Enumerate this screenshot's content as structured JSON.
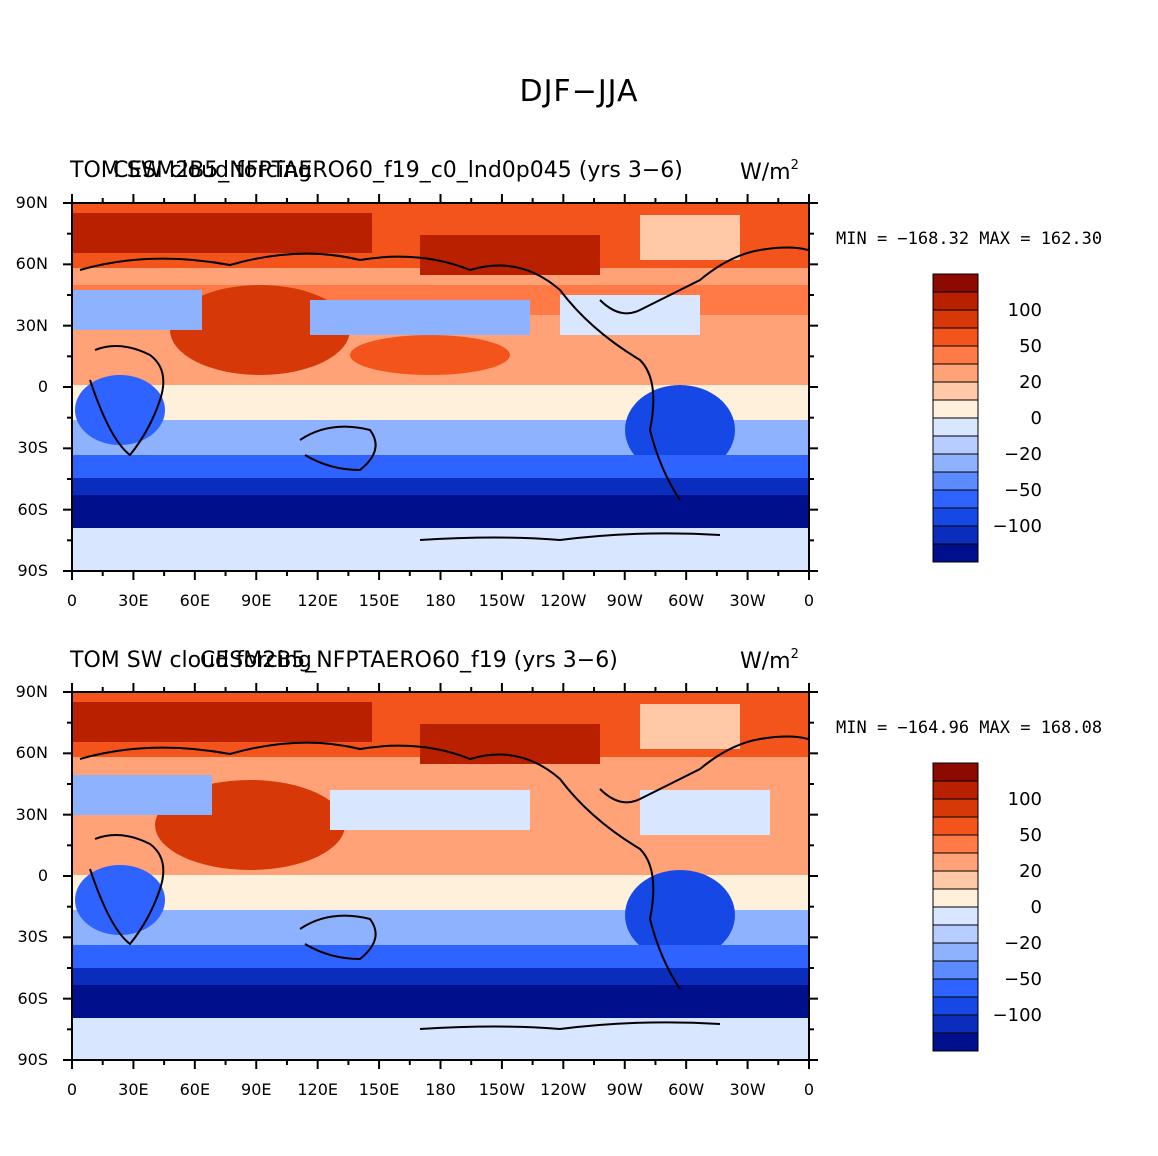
{
  "figure_title": "DJF−JJA",
  "x_ticks": [
    "0",
    "30E",
    "60E",
    "90E",
    "120E",
    "150E",
    "180",
    "150W",
    "120W",
    "90W",
    "60W",
    "30W",
    "0"
  ],
  "y_ticks": [
    "90N",
    "60N",
    "30N",
    "0",
    "30S",
    "60S",
    "90S"
  ],
  "colorbar": {
    "colors": [
      "#000f8c",
      "#0a2dbd",
      "#1648e6",
      "#2f63ff",
      "#5b8bff",
      "#8fb2ff",
      "#b7cdff",
      "#d9e6ff",
      "#fff0dc",
      "#ffc8a6",
      "#ffa278",
      "#ff7a47",
      "#f2541c",
      "#d63808",
      "#b82000",
      "#8c0a00"
    ],
    "labels": [
      "100",
      "50",
      "20",
      "0",
      "−20",
      "−50",
      "−100"
    ]
  },
  "panels": [
    {
      "left_title": "TOM SW cloud forcing",
      "center_title": "CESM2B5_NFPTAERO60_f19_c0_lnd0p045 (yrs 3−6)",
      "units": "W/m",
      "units_sup": "2",
      "min_max": "MIN = −168.32 MAX = 162.30"
    },
    {
      "left_title": "TOM SW cloud forcing",
      "center_title": "CESM2B5_NFPTAERO60_f19 (yrs 3−6)",
      "units": "W/m",
      "units_sup": "2",
      "min_max": "MIN = −164.96 MAX = 168.08"
    }
  ]
}
